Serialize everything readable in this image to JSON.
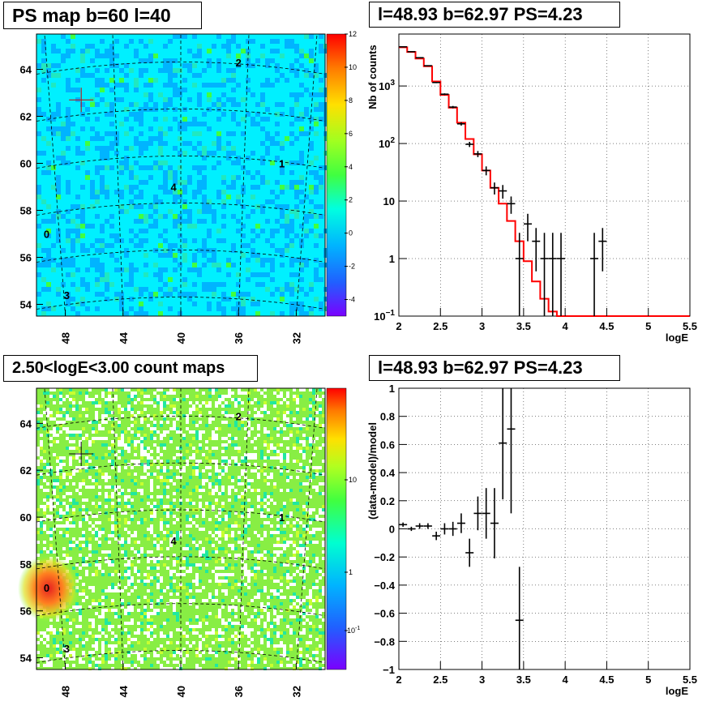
{
  "colors": {
    "hist_line": "#ff0000",
    "data_points": "#000000",
    "cross_marker": "#cc0000",
    "hot_spot": "#e62020"
  },
  "panels": {
    "ps_map": {
      "title": "PS map b=60 l=40",
      "zaxis_ticks": [
        "12",
        "10",
        "8",
        "6",
        "4",
        "2",
        "0",
        "-2",
        "-4"
      ],
      "xaxis_ticks": [
        "48",
        "44",
        "40",
        "36",
        "32"
      ],
      "yaxis_ticks": [
        "64",
        "62",
        "60",
        "58",
        "56",
        "54"
      ],
      "source_labels": [
        "2",
        "1",
        "4",
        "0",
        "3"
      ]
    },
    "spectrum": {
      "title": "l=48.93 b=62.97 PS=4.23",
      "ylabel": "Nb of counts",
      "xlabel": "logE",
      "xticks": [
        "2",
        "2.5",
        "3",
        "3.5",
        "4",
        "4.5",
        "5",
        "5.5"
      ],
      "ytick_10": "10",
      "ytick_1": "1",
      "ytick_2_base": "10",
      "ytick_2_exp": "2",
      "ytick_3_base": "10",
      "ytick_3_exp": "3",
      "ytick_m1_base": "10",
      "ytick_m1_exp": "−1"
    },
    "count_map": {
      "title": "2.50<logE<3.00 count maps",
      "zaxis_ticks": [
        "10",
        "1"
      ],
      "zaxis_tick_small_base": "10",
      "zaxis_tick_small_exp": "-1",
      "xaxis_ticks": [
        "48",
        "44",
        "40",
        "36",
        "32"
      ],
      "yaxis_ticks": [
        "64",
        "62",
        "60",
        "58",
        "56",
        "54"
      ],
      "source_labels": [
        "2",
        "1",
        "4",
        "0",
        "3"
      ]
    },
    "residual": {
      "title": "l=48.93 b=62.97 PS=4.23",
      "ylabel": "(data-model)/model",
      "xlabel": "logE",
      "xticks": [
        "2",
        "2.5",
        "3",
        "3.5",
        "4",
        "4.5",
        "5",
        "5.5"
      ],
      "yticks": [
        "1",
        "0.8",
        "0.6",
        "0.4",
        "0.2",
        "0",
        "−0.2",
        "−0.4",
        "−0.6",
        "−0.8",
        "−1"
      ]
    }
  },
  "chart_data": [
    {
      "type": "heatmap",
      "title": "PS map b=60 l=40",
      "xlabel": "",
      "ylabel": "",
      "xlim": [
        50,
        30
      ],
      "ylim": [
        53.5,
        65.5
      ],
      "zlim": [
        -5,
        12
      ],
      "sources": [
        {
          "label": "2",
          "x": 36.0,
          "y": 64.3
        },
        {
          "label": "1",
          "x": 33.0,
          "y": 60.0
        },
        {
          "label": "4",
          "x": 40.5,
          "y": 59.0
        },
        {
          "label": "0",
          "x": 49.3,
          "y": 57.0
        },
        {
          "label": "3",
          "x": 47.9,
          "y": 54.4
        }
      ],
      "marker": {
        "x": 46.9,
        "y": 62.7
      }
    },
    {
      "type": "line",
      "title": "l=48.93 b=62.97 PS=4.23",
      "xlabel": "logE",
      "ylabel": "Nb of counts",
      "xlim": [
        2,
        5.5
      ],
      "ylim": [
        0.1,
        8000
      ],
      "yscale": "log",
      "grid": true,
      "series": [
        {
          "kind": "step",
          "x_edges": [
            2.0,
            2.1,
            2.2,
            2.3,
            2.4,
            2.5,
            2.6,
            2.7,
            2.8,
            2.9,
            3.0,
            3.1,
            3.2,
            3.3,
            3.4,
            3.5,
            3.6,
            3.7,
            3.8,
            3.9,
            4.0,
            5.5
          ],
          "values": [
            4700,
            3900,
            3000,
            2200,
            1200,
            700,
            420,
            230,
            120,
            65,
            34,
            17,
            9,
            4.5,
            2.0,
            0.9,
            0.4,
            0.2,
            0.12,
            0.1,
            0.1
          ]
        },
        {
          "kind": "points",
          "x": [
            2.05,
            2.15,
            2.25,
            2.35,
            2.45,
            2.55,
            2.65,
            2.75,
            2.85,
            2.95,
            3.05,
            3.15,
            3.25,
            3.35,
            3.45,
            3.55,
            3.65,
            3.75,
            3.85,
            3.95,
            4.35,
            4.45
          ],
          "y": [
            4800,
            3950,
            3100,
            2250,
            1150,
            720,
            430,
            220,
            97,
            66,
            34,
            17,
            15,
            9,
            1,
            4,
            2,
            1,
            1,
            1,
            1,
            2
          ],
          "yerr_low": [
            60,
            60,
            50,
            45,
            30,
            25,
            20,
            15,
            10,
            8,
            6,
            4,
            4,
            3,
            0.9,
            2,
            1.4,
            0.9,
            0.9,
            0.9,
            0.9,
            1.4
          ],
          "yerr_high": [
            60,
            60,
            50,
            45,
            30,
            25,
            20,
            15,
            10,
            8,
            6,
            4,
            4,
            3,
            1.8,
            2,
            1.4,
            1.8,
            1.8,
            1.8,
            1.8,
            1.4
          ]
        }
      ]
    },
    {
      "type": "heatmap",
      "title": "2.50<logE<3.00 count maps",
      "xlabel": "",
      "ylabel": "",
      "xlim": [
        50,
        30
      ],
      "ylim": [
        53.5,
        65.5
      ],
      "zscale": "log",
      "sources": [
        {
          "label": "2",
          "x": 36.0,
          "y": 64.3
        },
        {
          "label": "1",
          "x": 33.0,
          "y": 60.0
        },
        {
          "label": "4",
          "x": 40.5,
          "y": 59.0
        },
        {
          "label": "0",
          "x": 49.3,
          "y": 57.0
        },
        {
          "label": "3",
          "x": 47.9,
          "y": 54.4
        }
      ],
      "marker": {
        "x": 46.9,
        "y": 62.7
      }
    },
    {
      "type": "scatter",
      "title": "l=48.93 b=62.97 PS=4.23",
      "xlabel": "logE",
      "ylabel": "(data-model)/model",
      "xlim": [
        2,
        5.5
      ],
      "ylim": [
        -1,
        1
      ],
      "grid": true,
      "x": [
        2.05,
        2.15,
        2.25,
        2.35,
        2.45,
        2.55,
        2.65,
        2.75,
        2.85,
        2.95,
        3.05,
        3.15,
        3.25,
        3.35,
        3.45
      ],
      "y": [
        0.03,
        0.0,
        0.02,
        0.02,
        -0.05,
        0.0,
        0.0,
        0.04,
        -0.17,
        0.11,
        0.11,
        0.04,
        0.61,
        0.71,
        -0.65
      ],
      "yerr": [
        0.015,
        0.015,
        0.02,
        0.02,
        0.03,
        0.04,
        0.05,
        0.07,
        0.1,
        0.12,
        0.18,
        0.25,
        0.4,
        0.6,
        0.38
      ]
    }
  ]
}
